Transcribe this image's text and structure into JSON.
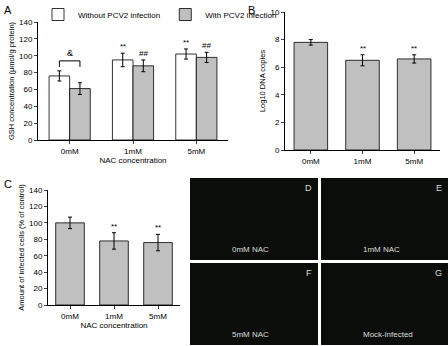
{
  "chart_data": [
    {
      "panel": "A",
      "type": "bar",
      "categories": [
        "0mM",
        "1mM",
        "5mM"
      ],
      "series": [
        {
          "name": "Without PCV2 infection",
          "color": "#ffffff",
          "values": [
            76,
            95,
            102
          ],
          "errors": [
            6,
            8,
            6
          ]
        },
        {
          "name": "With PCV2 infection",
          "color": "#c0c0c0",
          "values": [
            61,
            88,
            98
          ],
          "errors": [
            7,
            7,
            6
          ]
        }
      ],
      "x_label": "NAC concentration",
      "y_label": "GSH concentration (μmol/g protein)",
      "ylim": [
        0,
        140
      ],
      "yticks": [
        0,
        20,
        40,
        60,
        80,
        100,
        120,
        140
      ],
      "legend": "top",
      "annotations": [
        {
          "text": "&",
          "category": "0mM",
          "series": [
            "Without PCV2 infection",
            "With PCV2 infection"
          ]
        },
        {
          "text": "**",
          "category": "1mM",
          "series": [
            "Without PCV2 infection"
          ]
        },
        {
          "text": "**",
          "category": "5mM",
          "series": [
            "Without PCV2 infection"
          ]
        },
        {
          "text": "##",
          "category": "1mM",
          "series": [
            "With PCV2 infection"
          ]
        },
        {
          "text": "##",
          "category": "5mM",
          "series": [
            "With PCV2 infection"
          ]
        }
      ]
    },
    {
      "panel": "B",
      "type": "bar",
      "categories": [
        "0mM",
        "1mM",
        "5mM"
      ],
      "values": [
        7.8,
        6.5,
        6.6
      ],
      "errors": [
        0.2,
        0.4,
        0.3
      ],
      "color": "#c0c0c0",
      "y_label": "Log10 DNA copies",
      "ylim": [
        0,
        10
      ],
      "yticks": [
        0,
        2,
        4,
        6,
        8,
        10
      ],
      "annotations": [
        {
          "text": "**",
          "category": "1mM"
        },
        {
          "text": "**",
          "category": "5mM"
        }
      ]
    },
    {
      "panel": "C",
      "type": "bar",
      "categories": [
        "0mM",
        "1mM",
        "5mM"
      ],
      "values": [
        100,
        78,
        76
      ],
      "errors": [
        7,
        10,
        10
      ],
      "color": "#c0c0c0",
      "x_label": "NAC concentration",
      "y_label": "Amount of infected cells (% of control)",
      "ylim": [
        0,
        140
      ],
      "yticks": [
        0,
        20,
        40,
        60,
        80,
        100,
        120,
        140
      ],
      "annotations": [
        {
          "text": "**",
          "category": "1mM"
        },
        {
          "text": "**",
          "category": "5mM"
        }
      ]
    }
  ],
  "micrographs": [
    {
      "panel": "D",
      "caption": "0mM NAC"
    },
    {
      "panel": "E",
      "caption": "1mM NAC"
    },
    {
      "panel": "F",
      "caption": "5mM NAC"
    },
    {
      "panel": "G",
      "caption": "Mock-infected"
    }
  ]
}
